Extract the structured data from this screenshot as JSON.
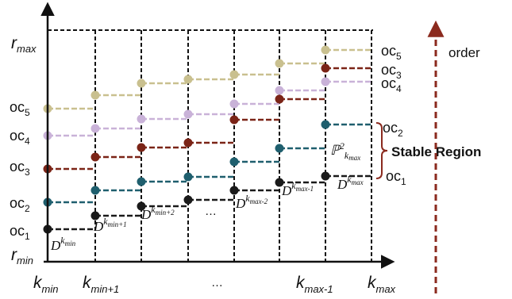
{
  "axes": {
    "y_top": {
      "main": "r",
      "sub": "max"
    },
    "y_bottom": {
      "main": "r",
      "sub": "min"
    },
    "x_ticks": [
      {
        "main": "k",
        "sub": "min"
      },
      {
        "main": "k",
        "sub": "min+1"
      },
      {
        "main": "…",
        "sub": ""
      },
      {
        "main": "k",
        "sub": "max-1"
      },
      {
        "main": "k",
        "sub": "max"
      }
    ]
  },
  "left_oc_labels": [
    {
      "main": "oc",
      "sub": "5"
    },
    {
      "main": "oc",
      "sub": "4"
    },
    {
      "main": "oc",
      "sub": "3"
    },
    {
      "main": "oc",
      "sub": "2"
    },
    {
      "main": "oc",
      "sub": "1"
    }
  ],
  "right_oc_labels": [
    {
      "main": "oc",
      "sub": "5"
    },
    {
      "main": "oc",
      "sub": "3"
    },
    {
      "main": "oc",
      "sub": "4"
    },
    {
      "main": "oc",
      "sub": "2"
    },
    {
      "main": "oc",
      "sub": "1"
    }
  ],
  "d_labels": [
    {
      "base": "D",
      "sup": "k",
      "supsub": "min"
    },
    {
      "base": "D",
      "sup": "k",
      "supsub": "min+1"
    },
    {
      "base": "D",
      "sup": "k",
      "supsub": "min+2"
    },
    {
      "base": "…",
      "sup": "",
      "supsub": ""
    },
    {
      "base": "D",
      "sup": "k",
      "supsub": "max-2"
    },
    {
      "base": "D",
      "sup": "k",
      "supsub": "max-1"
    },
    {
      "base": "D",
      "sup": "k",
      "supsub": "max"
    }
  ],
  "p_label": {
    "base": "ℙ",
    "sup": "2",
    "sub": "k",
    "subsub": "max"
  },
  "stable_region_label": "Stable Region",
  "order_label": "order",
  "colors": {
    "oc1": "#1a1a1a",
    "oc2": "#1f5f6e",
    "oc3": "#7b2417",
    "oc4": "#c9b2d8",
    "oc5": "#c9c08f",
    "order_arrow": "#8b2a1e",
    "bracket": "#8b2a1e"
  }
}
